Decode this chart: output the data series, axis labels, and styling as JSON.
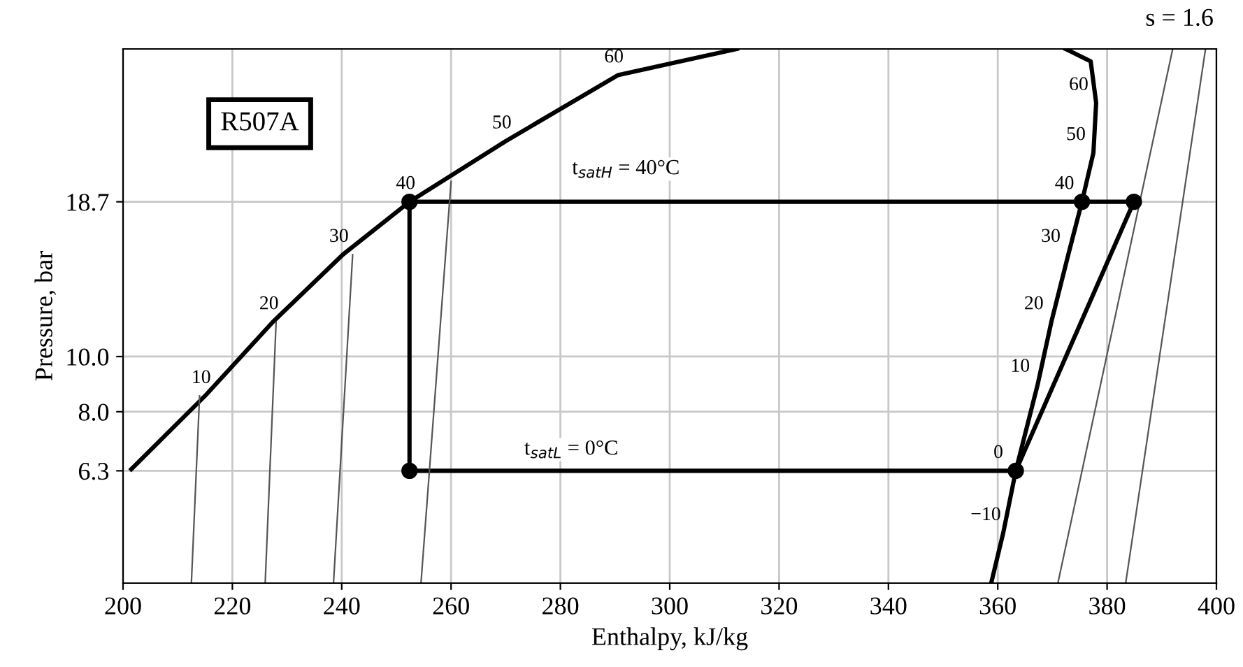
{
  "chart_data": {
    "type": "line",
    "xlabel": "Enthalpy, kJ/kg",
    "ylabel": "Pressure, bar",
    "log": "y",
    "xlim": [
      200,
      400
    ],
    "xticks": [
      200,
      220,
      240,
      260,
      280,
      300,
      320,
      340,
      360,
      380,
      400
    ],
    "ylim": [
      4.0,
      34.7
    ],
    "yticks": [
      6.3,
      {
        "value": 8,
        "label": "8.0"
      },
      {
        "value": 10,
        "label": "10.0"
      },
      18.7
    ],
    "grid": true,
    "line_style": "solid",
    "series": [
      {
        "color": "#000000",
        "x": [
          201.5,
          215,
          227.4,
          240.2,
          252.4,
          270,
          290.5,
          312.3
        ],
        "values": [
          6.34,
          8.53,
          11.5,
          15.1,
          18.7,
          23.9,
          31.2,
          34.7
        ]
      },
      {
        "color": "#000000",
        "x": [
          358.8,
          361,
          363.3,
          367.3,
          369.8,
          372.9,
          375.4,
          377.5,
          378,
          377,
          372.4
        ],
        "values": [
          4.0,
          4.9,
          6.3,
          8.93,
          11.5,
          15.1,
          18.7,
          22.8,
          27.9,
          33.0,
          34.7
        ]
      },
      {
        "color": "#000000",
        "x": [
          252.4,
          375.4,
          384.9
        ],
        "values": [
          18.7,
          18.7,
          18.7
        ]
      },
      {
        "color": "#000000",
        "x": [
          252.4,
          252.4
        ],
        "values": [
          18.7,
          6.3
        ]
      },
      {
        "color": "#000000",
        "x": [
          252.4,
          363.3
        ],
        "values": [
          6.3,
          6.3
        ]
      },
      {
        "color": "#000000",
        "x": [
          363.3,
          384.9
        ],
        "values": [
          6.3,
          18.7
        ]
      },
      {
        "type": "scatter",
        "marker": "circle",
        "color": "#000000",
        "x": [
          252.4,
          252.4,
          363.3,
          375.4,
          384.9
        ],
        "values": [
          18.7,
          6.3,
          6.3,
          18.7,
          18.7
        ]
      },
      {
        "color": "#555555",
        "x": [
          383.4,
          398.0
        ],
        "values": [
          4.0,
          34.7
        ]
      },
      {
        "color": "#555555",
        "x": [
          371,
          392
        ],
        "values": [
          4.0,
          34.7
        ]
      },
      {
        "color": "#555555",
        "x": [
          214,
          212.5
        ],
        "values": [
          8.53,
          4.0
        ]
      },
      {
        "color": "#555555",
        "x": [
          228,
          226
        ],
        "values": [
          11.5,
          4.0
        ]
      },
      {
        "color": "#555555",
        "x": [
          242,
          238.5
        ],
        "values": [
          15.1,
          4.0
        ]
      },
      {
        "color": "#555555",
        "x": [
          260,
          254.5
        ],
        "values": [
          20.3,
          4.0
        ]
      }
    ],
    "annotations": [
      "R507A",
      "s = 1.6",
      "t$_{satH}$ = 40°C",
      "t$_{satL}$ = 0°C",
      {
        "text": "10",
        "x": 215,
        "y": 8.53
      },
      {
        "text": "20",
        "x": 227.4,
        "y": 11.5
      },
      {
        "text": "30",
        "x": 240.2,
        "y": 15.1
      },
      {
        "text": "40",
        "x": 252.4,
        "y": 18.7
      },
      {
        "text": "50",
        "x": 270,
        "y": 23.9
      },
      {
        "text": "60",
        "x": 290.5,
        "y": 31.2
      },
      {
        "text": "−10",
        "x": 361,
        "y": 4.9
      },
      {
        "text": "0",
        "x": 363.3,
        "y": 6.3
      },
      {
        "text": "10",
        "x": 367.3,
        "y": 8.93
      },
      {
        "text": "20",
        "x": 369.8,
        "y": 11.5
      },
      {
        "text": "30",
        "x": 372.9,
        "y": 15.1
      },
      {
        "text": "40",
        "x": 375.4,
        "y": 18.7
      },
      {
        "text": "50",
        "x": 377.5,
        "y": 22.8
      },
      {
        "text": "60",
        "x": 378,
        "y": 27.9
      }
    ]
  }
}
